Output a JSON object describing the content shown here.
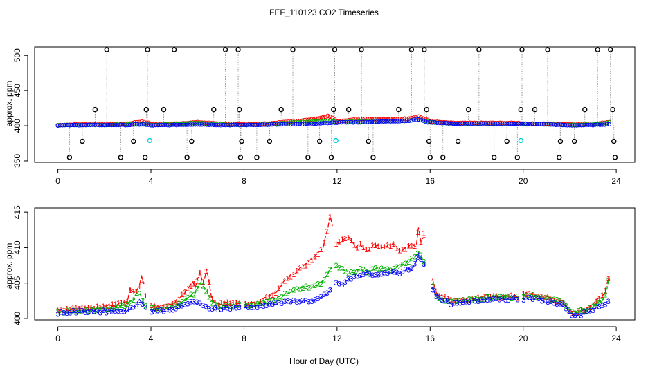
{
  "figure": {
    "title": "FEF_110123  CO2 Timeseries",
    "xlabel": "Hour of Day (UTC)"
  },
  "chart_data": [
    {
      "type": "scatter",
      "name": "top-panel",
      "ylabel": "approx. ppm",
      "xlim": [
        -1,
        24.8
      ],
      "ylim": [
        348,
        512
      ],
      "xticks": [
        0,
        4,
        8,
        12,
        16,
        20,
        24
      ],
      "yticks": [
        350,
        400,
        450,
        500
      ],
      "baseline_anchors": {
        "x": [
          0,
          1,
          2,
          3,
          3.6,
          3.9,
          4,
          5,
          6,
          7,
          7.8,
          8,
          9,
          10,
          11,
          11.6,
          11.9,
          12,
          13,
          14,
          15,
          15.5,
          15.9,
          16,
          17,
          18,
          19,
          19.8,
          20,
          21,
          22,
          23,
          23.6,
          23.8
        ],
        "series_1": [
          401,
          402,
          402,
          403,
          406,
          404,
          402,
          403,
          405,
          403,
          402,
          402,
          403,
          406,
          409,
          414,
          409,
          406,
          410,
          409,
          410,
          413,
          408,
          406,
          404,
          404,
          404,
          404,
          403,
          403,
          402,
          402,
          405,
          406
        ],
        "series_2": [
          401,
          401,
          401,
          402,
          403,
          402,
          401,
          402,
          404,
          402,
          401,
          401,
          402,
          404,
          406,
          407,
          406,
          405,
          406,
          406,
          407,
          409,
          406,
          405,
          403,
          403,
          403,
          403,
          403,
          402,
          401,
          402,
          404,
          406
        ],
        "series_3": [
          400.5,
          401,
          401,
          401,
          402,
          401,
          400.5,
          401,
          402,
          401,
          401,
          401,
          401.5,
          402,
          403,
          404,
          404.5,
          404.5,
          405,
          406,
          407,
          409,
          405,
          405,
          403,
          403,
          403,
          403,
          403,
          402,
          400.5,
          401,
          402,
          403
        ]
      },
      "spike_high": {
        "value": 508,
        "x": [
          2.1,
          3.85,
          5.0,
          7.2,
          7.75,
          10.1,
          11.9,
          13.05,
          15.2,
          15.75,
          18.1,
          19.95,
          21.05,
          23.2,
          23.75
        ]
      },
      "spike_mid": {
        "value": 423,
        "x": [
          1.6,
          3.8,
          4.55,
          6.7,
          7.8,
          9.6,
          11.85,
          12.5,
          14.65,
          15.85,
          17.65,
          19.9,
          20.5,
          22.65,
          23.85
        ]
      },
      "spike_low": {
        "value": 378,
        "x": [
          1.05,
          3.25,
          5.75,
          7.9,
          9.1,
          11.25,
          13.35,
          15.95,
          17.2,
          19.3,
          21.6,
          22.2,
          23.9
        ]
      },
      "spike_min": {
        "value": 355,
        "x": [
          0.5,
          2.7,
          3.75,
          5.55,
          7.85,
          8.55,
          10.75,
          11.75,
          13.55,
          16.0,
          16.55,
          18.75,
          19.75,
          21.55,
          23.95
        ]
      },
      "cyan_points": {
        "x": [
          3.95,
          11.95,
          19.9
        ],
        "y": [
          379,
          379,
          379
        ]
      }
    },
    {
      "type": "line",
      "name": "bottom-panel",
      "ylabel": "approx. ppm",
      "xlim": [
        -1,
        24.8
      ],
      "ylim": [
        399.8,
        415.6
      ],
      "xticks": [
        0,
        4,
        8,
        12,
        16,
        20,
        24
      ],
      "yticks": [
        400,
        405,
        410,
        415
      ],
      "series": [
        {
          "name": "1",
          "color": "#ff0000",
          "anchors_x": [
            0,
            0.5,
            1,
            1.5,
            2,
            2.5,
            3,
            3.1,
            3.3,
            3.5,
            3.6,
            3.7,
            3.75,
            3.95,
            4.2,
            4.6,
            5,
            5.4,
            5.8,
            5.9,
            6.1,
            6.25,
            6.4,
            6.6,
            6.8,
            7.2,
            7.6,
            7.9,
            8.2,
            8.6,
            9,
            9.4,
            9.8,
            10.2,
            10.6,
            11,
            11.4,
            11.55,
            11.7,
            11.95,
            12.2,
            12.5,
            12.8,
            13,
            13.3,
            13.6,
            14,
            14.4,
            14.7,
            15,
            15.2,
            15.4,
            15.5,
            15.65,
            15.75,
            15.9,
            16.05,
            16.3,
            16.6,
            17,
            17.4,
            18,
            18.5,
            19,
            19.5,
            19.8,
            20.1,
            20.5,
            21,
            21.5,
            21.8,
            22.05,
            22.3,
            22.7,
            23,
            23.3,
            23.5,
            23.65,
            23.75
          ],
          "anchors_y": [
            401.2,
            401.3,
            401.5,
            401.5,
            401.8,
            402.0,
            402.5,
            404.2,
            403.5,
            404.5,
            405.8,
            405.0,
            403.5,
            402.0,
            401.5,
            401.8,
            402.2,
            403.5,
            405.0,
            404.5,
            406.5,
            405.0,
            407.0,
            403.0,
            402.0,
            402.2,
            402.2,
            402.0,
            402.0,
            402.3,
            403.0,
            403.8,
            405.5,
            406.5,
            407.5,
            408.5,
            410.0,
            412.0,
            414.5,
            410.5,
            411.0,
            411.5,
            410.0,
            410.5,
            409.5,
            410.5,
            410.0,
            410.5,
            409.5,
            410.0,
            410.5,
            410.0,
            413.0,
            410.0,
            412.5,
            409.5,
            406.0,
            403.5,
            403.0,
            402.5,
            402.5,
            402.8,
            403.3,
            403.0,
            403.2,
            403.0,
            403.5,
            403.3,
            403.0,
            402.5,
            402.2,
            400.8,
            401.0,
            401.2,
            402.0,
            403.0,
            403.5,
            405.5,
            406.5
          ]
        },
        {
          "name": "2",
          "color": "#00b000",
          "anchors_x": [
            0,
            0.5,
            1,
            1.5,
            2,
            2.5,
            3,
            3.3,
            3.45,
            3.6,
            3.75,
            3.95,
            4.2,
            4.6,
            5,
            5.4,
            5.8,
            5.9,
            6.1,
            6.3,
            6.5,
            6.7,
            7,
            7.4,
            7.8,
            8.2,
            8.6,
            9,
            9.4,
            9.8,
            10.2,
            10.6,
            11,
            11.3,
            11.55,
            11.7,
            11.95,
            12.2,
            12.5,
            12.8,
            13,
            13.3,
            13.6,
            14,
            14.4,
            14.7,
            15,
            15.2,
            15.4,
            15.5,
            15.65,
            15.9,
            16.05,
            16.3,
            16.6,
            17,
            17.4,
            18,
            18.5,
            19,
            19.5,
            19.8,
            20.1,
            20.5,
            21,
            21.5,
            21.8,
            22.05,
            22.4,
            22.8,
            23.1,
            23.4,
            23.6,
            23.75
          ],
          "anchors_y": [
            401.0,
            401.0,
            401.2,
            401.2,
            401.3,
            401.6,
            401.9,
            403.0,
            404.0,
            403.0,
            402.0,
            401.5,
            401.3,
            401.5,
            401.8,
            402.5,
            403.5,
            403.5,
            405.0,
            404.5,
            403.0,
            402.0,
            401.6,
            401.8,
            401.9,
            401.8,
            402.0,
            402.3,
            402.8,
            403.5,
            404.0,
            404.5,
            404.5,
            405.0,
            406.0,
            407.0,
            407.5,
            407.0,
            406.5,
            406.5,
            407.0,
            406.5,
            407.0,
            407.0,
            407.0,
            407.5,
            407.8,
            408.5,
            409.0,
            409.5,
            408.5,
            407.0,
            405.0,
            403.0,
            402.5,
            402.5,
            402.5,
            402.8,
            403.0,
            403.0,
            403.0,
            403.0,
            403.3,
            403.2,
            402.8,
            402.5,
            402.0,
            400.8,
            401.0,
            401.3,
            402.0,
            402.5,
            404.0,
            407.0
          ]
        },
        {
          "name": "3",
          "color": "#0000ff",
          "anchors_x": [
            0,
            0.5,
            1,
            1.5,
            2,
            2.5,
            3,
            3.3,
            3.5,
            3.7,
            3.95,
            4.2,
            4.6,
            5,
            5.4,
            5.8,
            6.0,
            6.2,
            6.5,
            7,
            7.4,
            7.8,
            8.2,
            8.6,
            9,
            9.4,
            9.8,
            10.2,
            10.6,
            11,
            11.3,
            11.6,
            11.8,
            11.95,
            12.2,
            12.5,
            12.8,
            13,
            13.3,
            13.6,
            14,
            14.4,
            14.7,
            15,
            15.2,
            15.4,
            15.5,
            15.7,
            15.9,
            16.05,
            16.3,
            16.6,
            17,
            17.4,
            18,
            18.5,
            19,
            19.5,
            19.8,
            20.1,
            20.5,
            21,
            21.5,
            21.8,
            22.05,
            22.4,
            22.8,
            23.1,
            23.4,
            23.6,
            23.75
          ],
          "anchors_y": [
            400.8,
            400.9,
            401.0,
            401.0,
            401.0,
            401.1,
            401.2,
            401.8,
            402.5,
            401.8,
            401.0,
            401.0,
            401.2,
            401.4,
            401.8,
            402.5,
            402.2,
            401.8,
            401.5,
            401.4,
            401.5,
            401.6,
            401.5,
            401.7,
            402.0,
            402.2,
            402.3,
            402.5,
            402.5,
            402.5,
            403.0,
            403.5,
            404.5,
            405.0,
            404.8,
            405.5,
            406.0,
            406.0,
            406.5,
            406.0,
            406.5,
            406.5,
            406.5,
            407.0,
            407.0,
            408.0,
            409.0,
            408.0,
            406.5,
            404.5,
            403.0,
            402.5,
            402.0,
            402.2,
            402.5,
            402.8,
            402.8,
            402.8,
            402.8,
            402.8,
            402.8,
            402.5,
            402.0,
            401.8,
            400.5,
            400.5,
            401.0,
            401.5,
            402.0,
            402.2,
            402.8
          ]
        }
      ]
    }
  ]
}
